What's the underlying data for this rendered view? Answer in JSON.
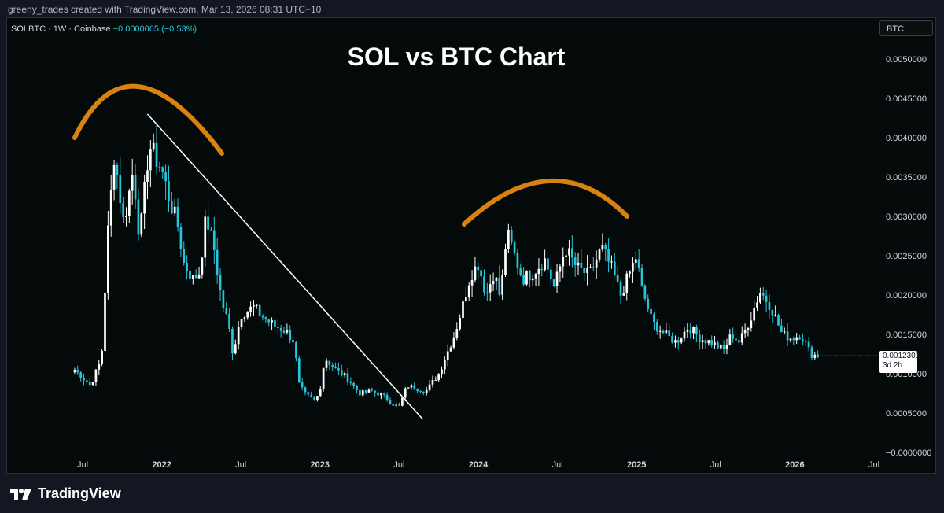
{
  "header": "greeny_trades created with TradingView.com, Mar 13, 2026 08:31 UTC+10",
  "symbol": {
    "name": "SOLBTC · 1W · Coinbase",
    "change": "−0.0000065 (−0.53%)"
  },
  "currency_button": "BTC",
  "footer": {
    "brand": "TradingView"
  },
  "price_label": {
    "price": "0.0012301",
    "countdown": "3d 2h"
  },
  "colors": {
    "up": "#ffffff",
    "down": "#26c6da",
    "annotation": "#d9820f",
    "trendline": "#ffffff",
    "background": "#040a0a"
  },
  "chart_data": {
    "type": "candlestick",
    "title": "SOL vs BTC Chart",
    "ylim": [
      0,
      0.0053
    ],
    "y_ticks": [
      "0.0050000",
      "0.0045000",
      "0.0040000",
      "0.0035000",
      "0.0030000",
      "0.0025000",
      "0.0020000",
      "0.0015000",
      "0.0010000",
      "0.0005000",
      "−0.0000000"
    ],
    "x_labels": [
      {
        "label": "Jul",
        "t": 2021.5,
        "bold": false
      },
      {
        "label": "2022",
        "t": 2022.0,
        "bold": true
      },
      {
        "label": "Jul",
        "t": 2022.5,
        "bold": false
      },
      {
        "label": "2023",
        "t": 2023.0,
        "bold": true
      },
      {
        "label": "Jul",
        "t": 2023.5,
        "bold": false
      },
      {
        "label": "2024",
        "t": 2024.0,
        "bold": true
      },
      {
        "label": "Jul",
        "t": 2024.5,
        "bold": false
      },
      {
        "label": "2025",
        "t": 2025.0,
        "bold": true
      },
      {
        "label": "Jul",
        "t": 2025.5,
        "bold": false
      },
      {
        "label": "2026",
        "t": 2026.0,
        "bold": true
      },
      {
        "label": "Jul",
        "t": 2026.5,
        "bold": false
      }
    ],
    "close_path": [
      [
        2021.45,
        0.00105
      ],
      [
        2021.55,
        0.00085
      ],
      [
        2021.62,
        0.0012
      ],
      [
        2021.66,
        0.0028
      ],
      [
        2021.7,
        0.0038
      ],
      [
        2021.76,
        0.0029
      ],
      [
        2021.82,
        0.0036
      ],
      [
        2021.86,
        0.0027
      ],
      [
        2021.92,
        0.0039
      ],
      [
        2022.0,
        0.0036
      ],
      [
        2022.05,
        0.0032
      ],
      [
        2022.1,
        0.0029
      ],
      [
        2022.14,
        0.0024
      ],
      [
        2022.2,
        0.0022
      ],
      [
        2022.24,
        0.0023
      ],
      [
        2022.28,
        0.003
      ],
      [
        2022.33,
        0.0026
      ],
      [
        2022.38,
        0.0019
      ],
      [
        2022.42,
        0.00165
      ],
      [
        2022.45,
        0.00125
      ],
      [
        2022.5,
        0.00175
      ],
      [
        2022.58,
        0.00185
      ],
      [
        2022.65,
        0.0017
      ],
      [
        2022.72,
        0.0016
      ],
      [
        2022.78,
        0.00155
      ],
      [
        2022.84,
        0.0014
      ],
      [
        2022.86,
        0.0009
      ],
      [
        2022.9,
        0.00075
      ],
      [
        2022.97,
        0.00065
      ],
      [
        2023.0,
        0.0008
      ],
      [
        2023.03,
        0.0012
      ],
      [
        2023.1,
        0.00105
      ],
      [
        2023.17,
        0.00095
      ],
      [
        2023.25,
        0.00075
      ],
      [
        2023.33,
        0.00078
      ],
      [
        2023.4,
        0.00072
      ],
      [
        2023.45,
        0.00062
      ],
      [
        2023.5,
        0.00058
      ],
      [
        2023.55,
        0.00085
      ],
      [
        2023.6,
        0.00082
      ],
      [
        2023.67,
        0.00078
      ],
      [
        2023.75,
        0.001
      ],
      [
        2023.8,
        0.00125
      ],
      [
        2023.85,
        0.0015
      ],
      [
        2023.9,
        0.00185
      ],
      [
        2023.95,
        0.00225
      ],
      [
        2024.0,
        0.0024
      ],
      [
        2024.05,
        0.002
      ],
      [
        2024.1,
        0.0023
      ],
      [
        2024.14,
        0.00195
      ],
      [
        2024.18,
        0.0028
      ],
      [
        2024.23,
        0.0025
      ],
      [
        2024.28,
        0.0022
      ],
      [
        2024.35,
        0.0023
      ],
      [
        2024.42,
        0.00245
      ],
      [
        2024.48,
        0.0021
      ],
      [
        2024.55,
        0.0026
      ],
      [
        2024.62,
        0.00235
      ],
      [
        2024.7,
        0.00225
      ],
      [
        2024.78,
        0.0026
      ],
      [
        2024.85,
        0.0023
      ],
      [
        2024.9,
        0.002
      ],
      [
        2024.95,
        0.00225
      ],
      [
        2025.0,
        0.0025
      ],
      [
        2025.03,
        0.0021
      ],
      [
        2025.1,
        0.00165
      ],
      [
        2025.18,
        0.0015
      ],
      [
        2025.25,
        0.0014
      ],
      [
        2025.33,
        0.0016
      ],
      [
        2025.4,
        0.00145
      ],
      [
        2025.47,
        0.0014
      ],
      [
        2025.55,
        0.0013
      ],
      [
        2025.6,
        0.0015
      ],
      [
        2025.65,
        0.0014
      ],
      [
        2025.72,
        0.0017
      ],
      [
        2025.78,
        0.00205
      ],
      [
        2025.85,
        0.00185
      ],
      [
        2025.92,
        0.0015
      ],
      [
        2025.98,
        0.00145
      ],
      [
        2026.04,
        0.0015
      ],
      [
        2026.1,
        0.00125
      ],
      [
        2026.15,
        0.00123
      ]
    ],
    "annotations": [
      {
        "type": "arc",
        "color": "orange",
        "desc": "rounded top 2021-2022",
        "points": [
          [
            2021.45,
            0.004
          ],
          [
            2021.85,
            0.00465
          ],
          [
            2022.38,
            0.0038
          ]
        ]
      },
      {
        "type": "arc",
        "color": "orange",
        "desc": "rounded top 2024",
        "points": [
          [
            2023.91,
            0.0029
          ],
          [
            2024.45,
            0.00345
          ],
          [
            2024.94,
            0.003
          ]
        ]
      },
      {
        "type": "trendline",
        "color": "white",
        "points": [
          [
            2021.91,
            0.0043
          ],
          [
            2023.65,
            0.00042
          ]
        ]
      }
    ]
  }
}
